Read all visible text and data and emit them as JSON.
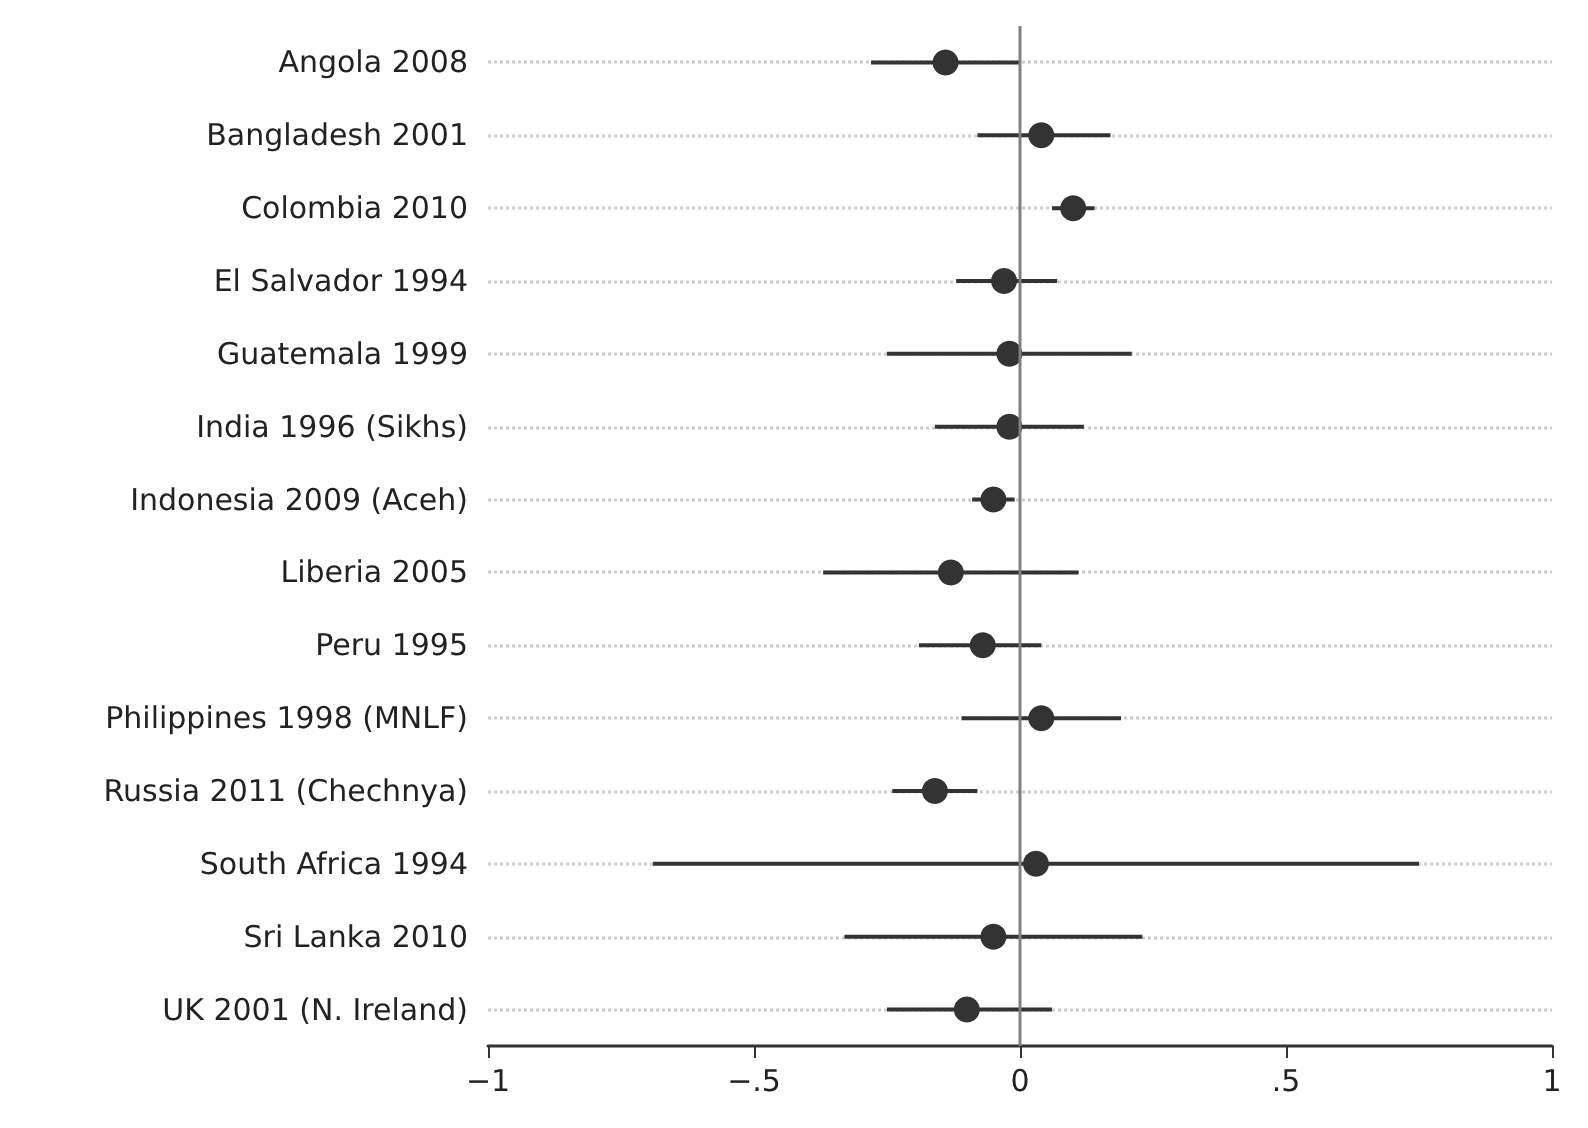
{
  "chart_data": {
    "type": "scatter",
    "orientation": "horizontal",
    "categories": [
      "Angola 2008",
      "Bangladesh 2001",
      "Colombia 2010",
      "El Salvador 1994",
      "Guatemala 1999",
      "India 1996 (Sikhs)",
      "Indonesia 2009 (Aceh)",
      "Liberia 2005",
      "Peru 1995",
      "Philippines 1998 (MNLF)",
      "Russia 2011 (Chechnya)",
      "South Africa 1994",
      "Sri Lanka 2010",
      "UK 2001 (N. Ireland)"
    ],
    "series": [
      {
        "color": "#333333",
        "values": [
          -0.14,
          0.04,
          0.1,
          -0.03,
          -0.02,
          -0.02,
          -0.05,
          -0.13,
          -0.07,
          0.04,
          -0.16,
          0.03,
          -0.05,
          -0.1
        ],
        "errors": [
          [
            -0.28,
            0.0
          ],
          [
            -0.08,
            0.17
          ],
          [
            0.06,
            0.14
          ],
          [
            -0.12,
            0.07
          ],
          [
            -0.25,
            0.21
          ],
          [
            -0.16,
            0.12
          ],
          [
            -0.09,
            -0.01
          ],
          [
            -0.37,
            0.11
          ],
          [
            -0.19,
            0.04
          ],
          [
            -0.11,
            0.19
          ],
          [
            -0.24,
            -0.08
          ],
          [
            -0.69,
            0.75
          ],
          [
            -0.33,
            0.23
          ],
          [
            -0.25,
            0.06
          ]
        ]
      }
    ],
    "xlim": [
      -1,
      1
    ],
    "xticks": [
      {
        "value": -1,
        "label": "−1"
      },
      {
        "value": -0.5,
        "label": "−.5"
      },
      0,
      {
        "value": 0.5,
        "label": ".5"
      },
      1
    ],
    "ref_lines": [
      {
        "axis": "x",
        "value": 0,
        "color": "#808080"
      }
    ],
    "grid": "y",
    "marker": "circle"
  }
}
